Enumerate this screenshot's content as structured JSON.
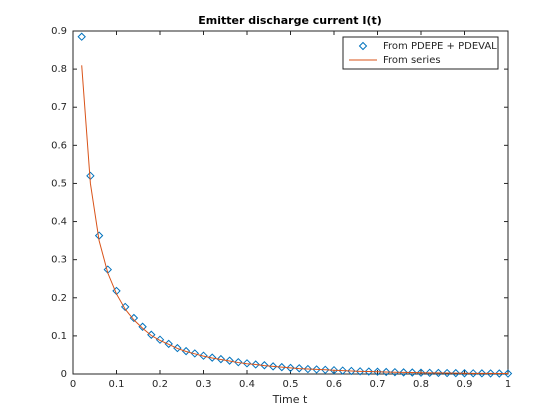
{
  "chart_data": {
    "type": "line",
    "title": "Emitter discharge current I(t)",
    "x_label": "Time t",
    "x": [
      0.02,
      0.04,
      0.06,
      0.08,
      0.1,
      0.12,
      0.14,
      0.16,
      0.18,
      0.2,
      0.22,
      0.24,
      0.26,
      0.28,
      0.3,
      0.32,
      0.34,
      0.36,
      0.38,
      0.4,
      0.42,
      0.44,
      0.46,
      0.48,
      0.5,
      0.52,
      0.54,
      0.56,
      0.58,
      0.6,
      0.62,
      0.64,
      0.66,
      0.68,
      0.7,
      0.72,
      0.74,
      0.76,
      0.78,
      0.8,
      0.82,
      0.84,
      0.86,
      0.88,
      0.9,
      0.92,
      0.94,
      0.96,
      0.98,
      1
    ],
    "series": [
      {
        "name": "From PDEPE + PDEVAL",
        "color": "#0072bd",
        "mode": "markers",
        "values": [
          0.885,
          0.52,
          0.363,
          0.274,
          0.218,
          0.176,
          0.147,
          0.124,
          0.103,
          0.09,
          0.079,
          0.068,
          0.06,
          0.054,
          0.048,
          0.043,
          0.039,
          0.035,
          0.031,
          0.028,
          0.025,
          0.023,
          0.02,
          0.018,
          0.016,
          0.015,
          0.013,
          0.012,
          0.011,
          0.01,
          0.009,
          0.008,
          0.007,
          0.0065,
          0.006,
          0.0053,
          0.0048,
          0.0043,
          0.0039,
          0.0035,
          0.0031,
          0.0028,
          0.0025,
          0.0023,
          0.002,
          0.0018,
          0.0017,
          0.0015,
          0.0013,
          0.0012
        ]
      },
      {
        "name": "From series",
        "color": "#d95319",
        "mode": "line",
        "values": [
          0.81,
          0.5,
          0.35,
          0.265,
          0.21,
          0.17,
          0.142,
          0.12,
          0.101,
          0.088,
          0.078,
          0.067,
          0.059,
          0.053,
          0.047,
          0.042,
          0.038,
          0.034,
          0.03,
          0.027,
          0.025,
          0.022,
          0.02,
          0.018,
          0.016,
          0.014,
          0.013,
          0.012,
          0.011,
          0.01,
          0.009,
          0.008,
          0.007,
          0.0064,
          0.0058,
          0.0052,
          0.0047,
          0.0042,
          0.0038,
          0.0034,
          0.0031,
          0.0028,
          0.0025,
          0.0022,
          0.002,
          0.0018,
          0.0016,
          0.0015,
          0.0013,
          0.0012
        ]
      }
    ],
    "xlim": [
      0,
      1
    ],
    "xticks": [
      0,
      0.1,
      0.2,
      0.3,
      0.4,
      0.5,
      0.6,
      0.7,
      0.8,
      0.9,
      1
    ],
    "ylim": [
      0,
      0.9
    ],
    "yticks": [
      0,
      0.1,
      0.2,
      0.3,
      0.4,
      0.5,
      0.6,
      0.7,
      0.8,
      0.9
    ],
    "legend": "northeast"
  }
}
